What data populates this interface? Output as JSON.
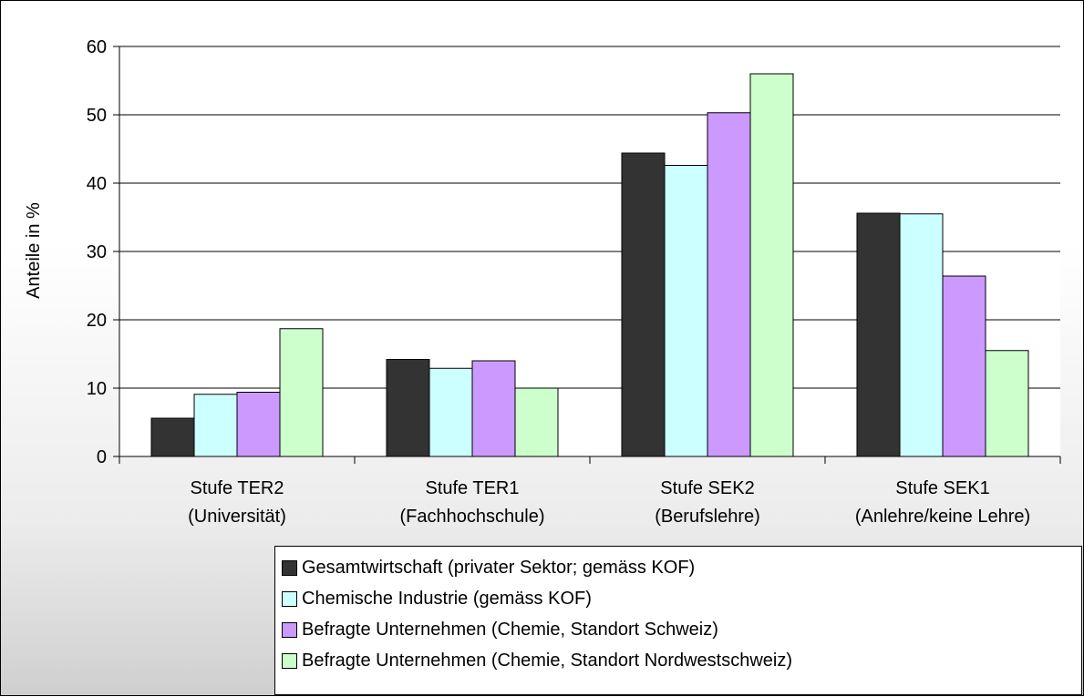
{
  "chart_data": {
    "type": "bar",
    "categories": [
      [
        "Stufe TER2",
        "(Universität)"
      ],
      [
        "Stufe TER1",
        "(Fachhochschule)"
      ],
      [
        "Stufe SEK2",
        "(Berufslehre)"
      ],
      [
        "Stufe SEK1",
        "(Anlehre/keine Lehre)"
      ]
    ],
    "series": [
      {
        "name": "Gesamtwirtschaft (privater Sektor; gemäss KOF)",
        "color": "#333333",
        "values": [
          5.6,
          14.2,
          44.4,
          35.6
        ]
      },
      {
        "name": "Chemische Industrie (gemäss KOF)",
        "color": "#ccffff",
        "values": [
          9.1,
          12.9,
          42.6,
          35.5
        ]
      },
      {
        "name": "Befragte Unternehmen (Chemie, Standort Schweiz)",
        "color": "#cc99ff",
        "values": [
          9.4,
          14.0,
          50.3,
          26.4
        ]
      },
      {
        "name": "Befragte Unternehmen (Chemie, Standort Nordwestschweiz)",
        "color": "#ccffcc",
        "values": [
          18.7,
          10.0,
          56.0,
          15.5
        ]
      }
    ],
    "xlabel": "",
    "ylabel": "Anteile in %",
    "ylim": [
      0,
      60
    ],
    "yticks": [
      0,
      10,
      20,
      30,
      40,
      50,
      60
    ],
    "grid": true,
    "legend_position": "bottom"
  }
}
